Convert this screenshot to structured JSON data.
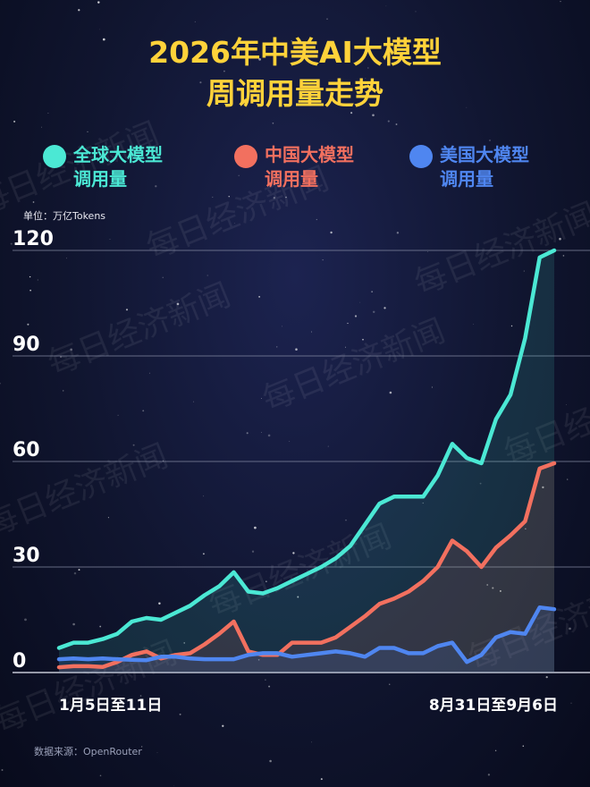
{
  "title_line1": "2026年中美AI大模型",
  "title_line2": "周调用量走势",
  "unit_label": "单位：万亿Tokens",
  "source_label": "数据来源：OpenRouter",
  "watermark_text": "每日经济新闻",
  "colors": {
    "title": "#ffd23a",
    "global": "#4be8d4",
    "china": "#f2705f",
    "usa": "#4f86f0"
  },
  "legend": [
    {
      "line1": "全球大模型",
      "line2": "调用量",
      "color": "#4be8d4"
    },
    {
      "line1": "中国大模型",
      "line2": "调用量",
      "color": "#f2705f"
    },
    {
      "line1": "美国大模型",
      "line2": "调用量",
      "color": "#4f86f0"
    }
  ],
  "chart_data": {
    "type": "area",
    "title": "2026年中美AI大模型周调用量走势",
    "ylabel": "单位：万亿Tokens",
    "ylim": [
      0,
      120
    ],
    "yticks": [
      0,
      30,
      60,
      90,
      120
    ],
    "grid": true,
    "legend_position": "top",
    "x_start_label": "1月5日至11日",
    "x_end_label": "8月31日至9月6日",
    "num_points": 35,
    "series": [
      {
        "name": "全球大模型调用量",
        "color": "#4be8d4",
        "values": [
          7,
          8.5,
          8.5,
          9.5,
          11,
          14.5,
          15.5,
          15,
          17,
          19,
          22,
          24.5,
          28.5,
          23,
          22.5,
          24,
          26,
          28,
          30,
          32.5,
          36,
          42,
          48,
          50,
          50,
          50,
          56,
          65,
          61,
          59.5,
          72,
          79,
          95,
          118,
          120
        ]
      },
      {
        "name": "中国大模型调用量",
        "color": "#f2705f",
        "values": [
          1.5,
          1.8,
          1.8,
          1.6,
          3,
          5,
          6,
          4,
          5,
          5.5,
          8,
          11,
          14.5,
          6,
          5,
          5,
          8.5,
          8.5,
          8.5,
          10,
          13,
          16,
          19.5,
          21,
          23,
          26,
          30,
          37.5,
          34.5,
          30,
          35.5,
          39,
          43,
          58,
          59.5
        ]
      },
      {
        "name": "美国大模型调用量",
        "color": "#4f86f0",
        "values": [
          3.8,
          4,
          3.8,
          4,
          3.8,
          3.6,
          3.5,
          4.5,
          4.5,
          4,
          3.8,
          3.8,
          3.8,
          5,
          5.5,
          5.5,
          4.5,
          5,
          5.5,
          6,
          5.5,
          4.5,
          7,
          7,
          5.5,
          5.5,
          7.5,
          8.5,
          3,
          5,
          10,
          11.5,
          11,
          18.5,
          18
        ]
      }
    ]
  }
}
